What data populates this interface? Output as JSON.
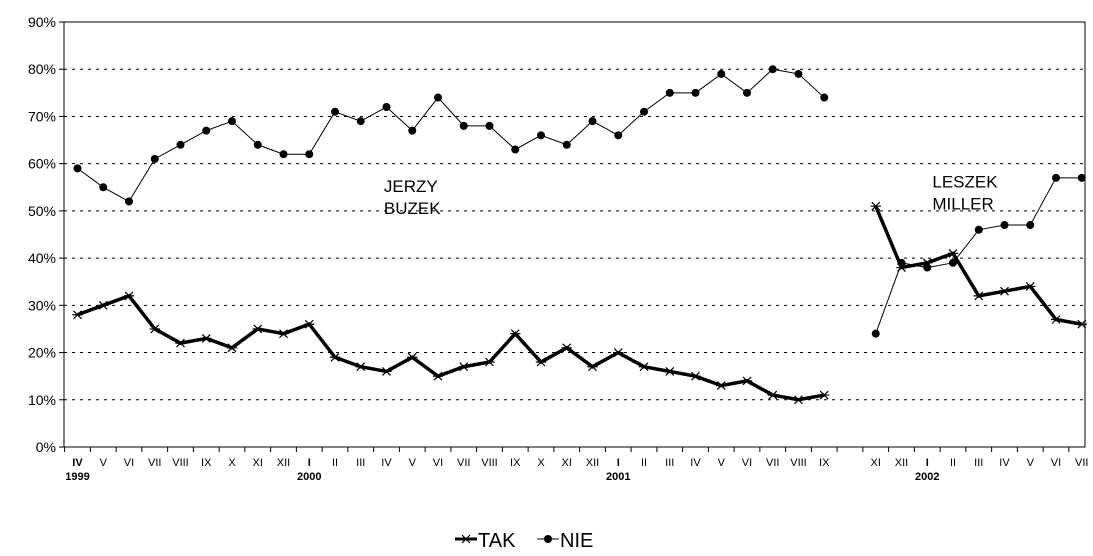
{
  "chart_data": {
    "type": "line",
    "ylim": [
      0,
      90
    ],
    "y_ticks": [
      "0%",
      "10%",
      "20%",
      "30%",
      "40%",
      "50%",
      "60%",
      "70%",
      "80%",
      "90%"
    ],
    "grid": "horizontal dashed",
    "legend_placement": "bottom-center",
    "categories": [
      "IV",
      "V",
      "VI",
      "VII",
      "VIII",
      "IX",
      "X",
      "XI",
      "XII",
      "I",
      "II",
      "III",
      "IV",
      "V",
      "VI",
      "VII",
      "VIII",
      "IX",
      "X",
      "XI",
      "XII",
      "I",
      "II",
      "III",
      "IV",
      "V",
      "VI",
      "VII",
      "VIII",
      "IX",
      "",
      "XI",
      "XII",
      "I",
      "II",
      "III",
      "IV",
      "V",
      "VI",
      "VII"
    ],
    "bold_categories": [
      0,
      9,
      21,
      33
    ],
    "years": [
      {
        "label": "1999",
        "at": 0
      },
      {
        "label": "2000",
        "at": 9
      },
      {
        "label": "2001",
        "at": 21
      },
      {
        "label": "2002",
        "at": 33
      }
    ],
    "series": [
      {
        "name": "TAK",
        "marker": "star",
        "style": "thick",
        "segments": [
          {
            "start": 0,
            "values": [
              28,
              30,
              32,
              25,
              22,
              23,
              21,
              25,
              24,
              26,
              19,
              17,
              16,
              19,
              15,
              17,
              18,
              24,
              18,
              21,
              17,
              20,
              17,
              16,
              15,
              13,
              14,
              11,
              10,
              11
            ]
          },
          {
            "start": 31,
            "values": [
              51,
              38,
              39,
              41,
              32,
              33,
              34,
              27,
              26
            ]
          }
        ]
      },
      {
        "name": "NIE",
        "marker": "dot",
        "style": "thin",
        "segments": [
          {
            "start": 0,
            "values": [
              59,
              55,
              52,
              61,
              64,
              67,
              69,
              64,
              62,
              62,
              71,
              69,
              72,
              67,
              74,
              68,
              68,
              63,
              66,
              64,
              69,
              66,
              71,
              75,
              75,
              79,
              75,
              80,
              79,
              74
            ]
          },
          {
            "start": 31,
            "values": [
              24,
              39,
              38,
              39,
              46,
              47,
              47,
              57,
              57
            ]
          }
        ]
      }
    ],
    "annotations": [
      {
        "lines": [
          "JERZY",
          "BUZEK"
        ],
        "at_category": 11.9,
        "y": 54
      },
      {
        "lines": [
          "LESZEK",
          "MILLER"
        ],
        "at_category": 33.2,
        "y": 55
      }
    ]
  }
}
